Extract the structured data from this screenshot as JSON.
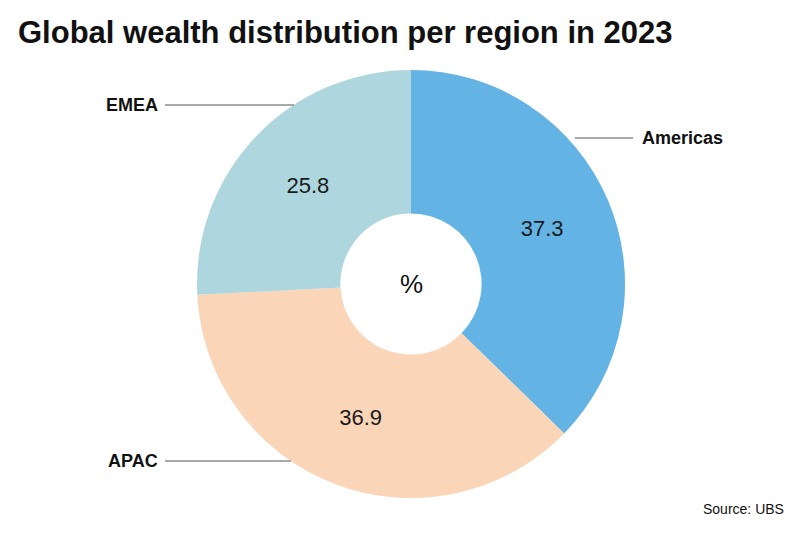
{
  "chart_data": {
    "type": "pie",
    "title": "Global wealth distribution per region in 2023",
    "categories": [
      "Americas",
      "APAC",
      "EMEA"
    ],
    "values": [
      37.3,
      36.9,
      25.8
    ],
    "colors": [
      "#63b3e5",
      "#fad5b8",
      "#aed6de"
    ],
    "data_labels": true,
    "center_label": "%",
    "source": "Source: UBS"
  }
}
